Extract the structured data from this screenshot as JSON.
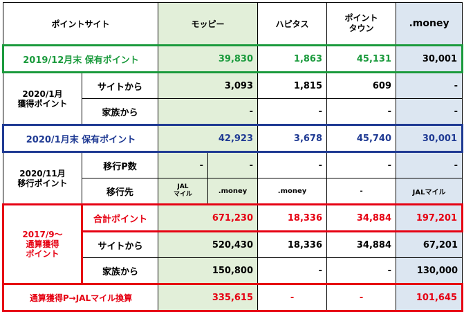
{
  "header": {
    "col0": "ポイントサイト",
    "moppy": "モッピー",
    "hapitas": "ハピタス",
    "pointtown_line1": "ポイント",
    "pointtown_line2": "タウン",
    "money": ".money"
  },
  "row_2019": {
    "label": "2019/12月末 保有ポイント",
    "moppy": "39,830",
    "hapitas": "1,863",
    "pointtown": "45,131",
    "money": "30,001"
  },
  "group_2020_jan": {
    "label_line1": "2020/1月",
    "label_line2": "獲得ポイント",
    "site": {
      "label": "サイトから",
      "moppy": "3,093",
      "hapitas": "1,815",
      "pointtown": "609",
      "money": "-"
    },
    "family": {
      "label": "家族から",
      "moppy": "-",
      "hapitas": "-",
      "pointtown": "-",
      "money": "-"
    }
  },
  "row_2020_jan_end": {
    "label": "2020/1月末 保有ポイント",
    "moppy": "42,923",
    "hapitas": "3,678",
    "pointtown": "45,740",
    "money": "30,001"
  },
  "group_2020_nov": {
    "label_line1": "2020/11月",
    "label_line2": "移行ポイント",
    "count": {
      "label": "移行P数",
      "moppy_a": "-",
      "moppy_b": "-",
      "hapitas": "-",
      "pointtown": "-",
      "money": "-"
    },
    "dest": {
      "label": "移行先",
      "moppy_a_line1": "JAL",
      "moppy_a_line2": "マイル",
      "moppy_b": ".money",
      "hapitas": ".money",
      "pointtown": "-",
      "money": "JALマイル"
    }
  },
  "group_total": {
    "label_line1": "2017/9〜",
    "label_line2": "通算獲得",
    "label_line3": "ポイント",
    "total": {
      "label": "合計ポイント",
      "moppy": "671,230",
      "hapitas": "18,336",
      "pointtown": "34,884",
      "money": "197,201"
    },
    "site": {
      "label": "サイトから",
      "moppy": "520,430",
      "hapitas": "18,336",
      "pointtown": "34,884",
      "money": "67,201"
    },
    "family": {
      "label": "家族から",
      "moppy": "150,800",
      "hapitas": "-",
      "pointtown": "-",
      "money": "130,000"
    }
  },
  "row_jal": {
    "label": "通算獲得P→JALマイル換算",
    "moppy": "335,615",
    "hapitas": "-",
    "pointtown": "-",
    "money": "101,645"
  },
  "colors": {
    "green": "#1a9a3c",
    "navy": "#1f3a93",
    "red": "#e60012",
    "green_bg": "#e2efd9",
    "blue_bg": "#dce6f1"
  }
}
